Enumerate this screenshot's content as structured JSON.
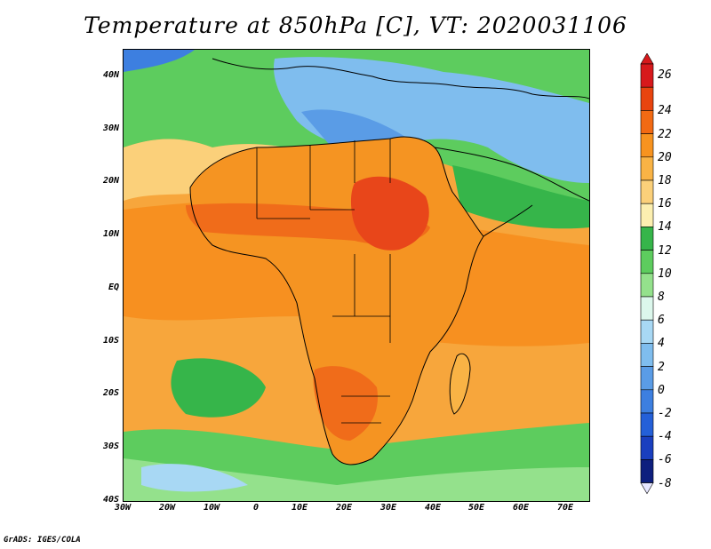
{
  "title": "Temperature at 850hPa [C], VT: 2020031106",
  "footer": "GrADS: IGES/COLA",
  "lat_ticks": [
    "40N",
    "30N",
    "20N",
    "10N",
    "EQ",
    "10S",
    "20S",
    "30S",
    "40S"
  ],
  "lon_ticks": [
    "30W",
    "20W",
    "10W",
    "0",
    "10E",
    "20E",
    "30E",
    "40E",
    "50E",
    "60E",
    "70E"
  ],
  "colorbar": {
    "labels": [
      "26",
      "24",
      "22",
      "20",
      "18",
      "16",
      "14",
      "12",
      "10",
      "8",
      "6",
      "4",
      "2",
      "0",
      "-2",
      "-4",
      "-6",
      "-8"
    ],
    "colors": [
      "#d7191c",
      "#e8440f",
      "#f26a13",
      "#f7931f",
      "#f9b345",
      "#fbd07a",
      "#fcefb0",
      "#36b54a",
      "#5dcc5e",
      "#94e18c",
      "#dcf7ec",
      "#a8d8f4",
      "#7fbdee",
      "#5a9ce6",
      "#3d7fe0",
      "#2460d8",
      "#1a3fbf",
      "#0e1f7e"
    ]
  },
  "map": {
    "lon_range": [
      -30,
      76
    ],
    "lat_range": [
      -40,
      45
    ],
    "colors": {
      "ocean_warm": "#f7a63c",
      "ocean_hot": "#f79020",
      "land_warm": "#f59422",
      "land_hot": "#f06c1a",
      "hot_core": "#e8461a",
      "north_cool": "#5dcc5e",
      "north_cold": "#3d7fe0",
      "south_green": "#36b54a",
      "south_cool": "#94e18c",
      "south_cold": "#a8d8f4",
      "coast": "#000000"
    }
  }
}
